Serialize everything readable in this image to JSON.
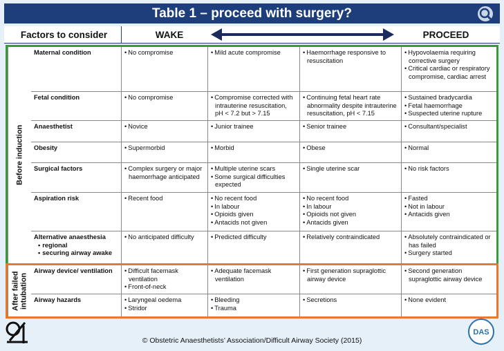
{
  "title": "Table 1 – proceed with surgery?",
  "header": {
    "factors": "Factors to consider",
    "wake": "WAKE",
    "proceed": "PROCEED"
  },
  "sections": [
    {
      "label": "Before induction",
      "color": "#3a9a3a",
      "rows": [
        {
          "factor": "Maternal condition",
          "cells": [
            [
              "No compromise"
            ],
            [
              "Mild acute compromise"
            ],
            [
              "Haemorrhage responsive to resuscitation"
            ],
            [
              "Hypovolaemia requiring corrective surgery",
              "Critical cardiac or respiratory compromise, cardiac arrest"
            ]
          ]
        },
        {
          "factor": "Fetal condition",
          "cells": [
            [
              "No compromise"
            ],
            [
              "Compromise corrected with intrauterine resuscitation, pH < 7.2 but > 7.15"
            ],
            [
              "Continuing fetal heart rate abnormality despite intrauterine resuscitation, pH < 7.15"
            ],
            [
              "Sustained bradycardia",
              "Fetal haemorrhage",
              "Suspected uterine rupture"
            ]
          ]
        },
        {
          "factor": "Anaesthetist",
          "cells": [
            [
              "Novice"
            ],
            [
              "Junior trainee"
            ],
            [
              "Senior trainee"
            ],
            [
              "Consultant/specialist"
            ]
          ]
        },
        {
          "factor": "Obesity",
          "cells": [
            [
              "Supermorbid"
            ],
            [
              "Morbid"
            ],
            [
              "Obese"
            ],
            [
              "Normal"
            ]
          ]
        },
        {
          "factor": "Surgical factors",
          "cells": [
            [
              "Complex surgery or major haemorrhage anticipated"
            ],
            [
              "Multiple uterine scars",
              "Some surgical difficulties expected"
            ],
            [
              "Single uterine scar"
            ],
            [
              "No risk factors"
            ]
          ]
        },
        {
          "factor": "Aspiration risk",
          "cells": [
            [
              "Recent food"
            ],
            [
              "No recent food",
              "In labour",
              "Opioids given",
              "Antacids not given"
            ],
            [
              "No recent food",
              "In labour",
              "Opioids not given",
              "Antacids given"
            ],
            [
              "Fasted",
              "Not in labour",
              "Antacids given"
            ]
          ]
        },
        {
          "factor": "Alternative anaesthesia",
          "factor_items": [
            "regional",
            "securing airway awake"
          ],
          "cells": [
            [
              "No anticipated difficulty"
            ],
            [
              "Predicted difficulty"
            ],
            [
              "Relatively contraindicated"
            ],
            [
              "Absolutely contraindicated or has failed",
              "Surgery started"
            ]
          ]
        }
      ]
    },
    {
      "label": "After failed intubation",
      "color": "#e8782a",
      "rows": [
        {
          "factor": "Airway device/ ventilation",
          "cells": [
            [
              "Difficult facemask ventilation",
              "Front-of-neck"
            ],
            [
              "Adequate facemask ventilation"
            ],
            [
              "First generation supraglottic airway device"
            ],
            [
              "Second generation supraglottic airway device"
            ]
          ]
        },
        {
          "factor": "Airway hazards",
          "cells": [
            [
              "Laryngeal oedema",
              "Stridor"
            ],
            [
              "Bleeding",
              "Trauma"
            ],
            [
              "Secretions"
            ],
            [
              "None evident"
            ]
          ]
        }
      ]
    }
  ],
  "footer": "© Obstetric Anaesthetists’ Association/Difficult Airway Society (2015)",
  "das_logo": "DAS"
}
